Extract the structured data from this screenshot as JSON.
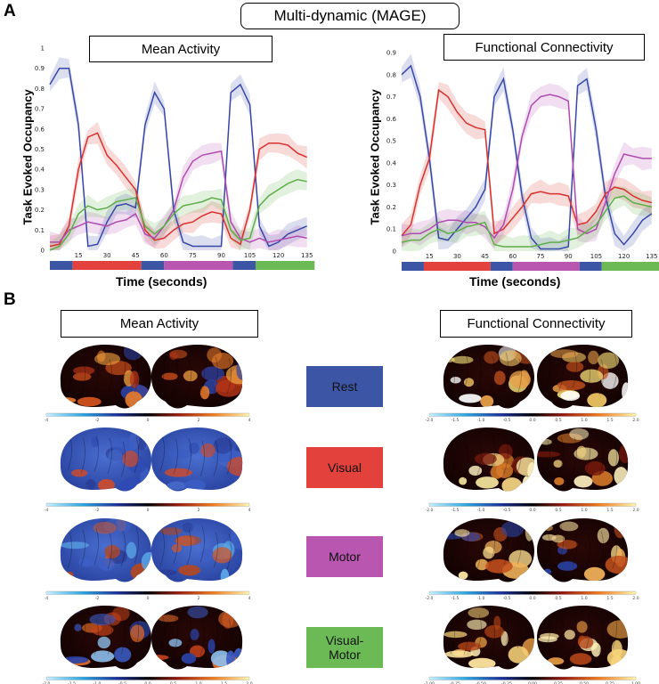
{
  "title": "Multi-dynamic (MAGE)",
  "panel_a": "A",
  "panel_b": "B",
  "mean_label": "Mean Activity",
  "fc_label": "Functional Connectivity",
  "states": [
    {
      "label": "Rest",
      "color": "#3d55a5"
    },
    {
      "label": "Visual",
      "color": "#e2413c"
    },
    {
      "label": "Motor",
      "color": "#b957b0"
    },
    {
      "label": "Visual-\nMotor",
      "color": "#6cba55"
    }
  ],
  "colorbar_ticks": {
    "mean_rows_1_3": [
      "-4",
      "-2",
      "0",
      "2",
      "4"
    ],
    "mean_row_4": [
      "-2.0",
      "-1.5",
      "-1.0",
      "-0.5",
      "0.0",
      "0.5",
      "1.0",
      "1.5",
      "2.0"
    ],
    "fc_rows_1_3": [
      "-2.0",
      "-1.5",
      "-1.0",
      "-0.5",
      "0.0",
      "0.5",
      "1.0",
      "1.5",
      "2.0"
    ],
    "fc_row_4": [
      "-1.00",
      "-0.75",
      "-0.50",
      "-0.25",
      "0.00",
      "0.25",
      "0.50",
      "0.75",
      "1.00"
    ]
  },
  "chart_data": [
    {
      "type": "line",
      "title": "Mean Activity",
      "xlabel": "Time (seconds)",
      "ylabel": "Task Evoked Occupancy",
      "xlim": [
        0,
        137
      ],
      "ylim": [
        0,
        1
      ],
      "xticks": [
        15,
        30,
        45,
        60,
        75,
        90,
        105,
        120,
        135
      ],
      "yticks": [
        0,
        0.1,
        0.2,
        0.3,
        0.4,
        0.5,
        0.6,
        0.7,
        0.8,
        0.9,
        1
      ],
      "ytick_labels": [
        "0",
        "0.1",
        "0.2",
        "0.3",
        "0.4",
        "0.5",
        "0.6",
        "0.7",
        "0.8",
        "0.9",
        "1"
      ],
      "x": [
        0,
        5,
        10,
        15,
        20,
        25,
        30,
        35,
        40,
        45,
        50,
        55,
        60,
        65,
        70,
        75,
        80,
        85,
        90,
        95,
        100,
        105,
        110,
        115,
        120,
        125,
        130,
        135
      ],
      "series": [
        {
          "name": "Rest",
          "color": "#3848a8",
          "values": [
            0.82,
            0.9,
            0.9,
            0.62,
            0.02,
            0.03,
            0.14,
            0.22,
            0.23,
            0.21,
            0.62,
            0.78,
            0.7,
            0.2,
            0.04,
            0.02,
            0.02,
            0.02,
            0.02,
            0.78,
            0.82,
            0.72,
            0.12,
            0.02,
            0.04,
            0.08,
            0.1,
            0.12
          ]
        },
        {
          "name": "Visual",
          "color": "#d9312d",
          "values": [
            0.02,
            0.03,
            0.12,
            0.4,
            0.56,
            0.58,
            0.47,
            0.42,
            0.36,
            0.3,
            0.1,
            0.05,
            0.06,
            0.1,
            0.13,
            0.14,
            0.17,
            0.19,
            0.18,
            0.06,
            0.03,
            0.2,
            0.5,
            0.53,
            0.53,
            0.52,
            0.48,
            0.46
          ]
        },
        {
          "name": "Motor",
          "color": "#b04bb0",
          "values": [
            0.04,
            0.04,
            0.1,
            0.12,
            0.14,
            0.13,
            0.12,
            0.14,
            0.15,
            0.18,
            0.08,
            0.06,
            0.12,
            0.2,
            0.36,
            0.44,
            0.47,
            0.48,
            0.49,
            0.14,
            0.06,
            0.04,
            0.06,
            0.04,
            0.05,
            0.06,
            0.07,
            0.06
          ]
        },
        {
          "name": "Visual-Motor",
          "color": "#5fae4a",
          "values": [
            0.0,
            0.02,
            0.08,
            0.18,
            0.22,
            0.2,
            0.21,
            0.24,
            0.25,
            0.26,
            0.12,
            0.08,
            0.12,
            0.18,
            0.22,
            0.23,
            0.24,
            0.26,
            0.25,
            0.1,
            0.05,
            0.06,
            0.22,
            0.27,
            0.3,
            0.33,
            0.35,
            0.34
          ]
        }
      ]
    },
    {
      "type": "line",
      "title": "Functional Connectivity",
      "xlabel": "Time (seconds)",
      "ylabel": "Task Evoked Occupancy",
      "xlim": [
        0,
        137
      ],
      "ylim": [
        0,
        0.9
      ],
      "xticks": [
        15,
        30,
        45,
        60,
        75,
        90,
        105,
        120,
        135
      ],
      "yticks": [
        0,
        0.1,
        0.2,
        0.3,
        0.4,
        0.5,
        0.6,
        0.7,
        0.8,
        0.9
      ],
      "ytick_labels": [
        "0",
        "0.1",
        "0.2",
        "0.3",
        "0.4",
        "0.5",
        "0.6",
        "0.7",
        "0.8",
        "0.9"
      ],
      "x": [
        0,
        5,
        10,
        15,
        20,
        25,
        30,
        35,
        40,
        45,
        50,
        55,
        60,
        65,
        70,
        75,
        80,
        85,
        90,
        95,
        100,
        105,
        110,
        115,
        120,
        125,
        130,
        135
      ],
      "series": [
        {
          "name": "Rest",
          "color": "#3848a8",
          "values": [
            0.8,
            0.84,
            0.7,
            0.42,
            0.06,
            0.05,
            0.1,
            0.15,
            0.2,
            0.28,
            0.7,
            0.78,
            0.55,
            0.25,
            0.06,
            0.01,
            0.01,
            0.01,
            0.02,
            0.75,
            0.78,
            0.55,
            0.25,
            0.08,
            0.03,
            0.08,
            0.14,
            0.17
          ]
        },
        {
          "name": "Visual",
          "color": "#d9312d",
          "values": [
            0.07,
            0.12,
            0.3,
            0.42,
            0.73,
            0.7,
            0.63,
            0.58,
            0.56,
            0.55,
            0.08,
            0.1,
            0.15,
            0.2,
            0.26,
            0.27,
            0.26,
            0.26,
            0.25,
            0.12,
            0.13,
            0.18,
            0.26,
            0.29,
            0.28,
            0.25,
            0.23,
            0.22
          ]
        },
        {
          "name": "Motor",
          "color": "#b04bb0",
          "values": [
            0.07,
            0.08,
            0.08,
            0.1,
            0.13,
            0.14,
            0.14,
            0.13,
            0.13,
            0.11,
            0.06,
            0.12,
            0.28,
            0.52,
            0.66,
            0.7,
            0.71,
            0.7,
            0.68,
            0.1,
            0.08,
            0.1,
            0.22,
            0.35,
            0.44,
            0.43,
            0.42,
            0.42
          ]
        },
        {
          "name": "Visual-Motor",
          "color": "#5fae4a",
          "values": [
            0.04,
            0.05,
            0.05,
            0.08,
            0.1,
            0.08,
            0.09,
            0.11,
            0.12,
            0.13,
            0.03,
            0.02,
            0.02,
            0.02,
            0.02,
            0.03,
            0.04,
            0.04,
            0.05,
            0.06,
            0.09,
            0.12,
            0.18,
            0.24,
            0.25,
            0.22,
            0.21,
            0.2
          ]
        }
      ],
      "task_blocks": [
        {
          "state": "Rest",
          "start": 0,
          "end": 12
        },
        {
          "state": "Visual",
          "start": 12,
          "end": 48
        },
        {
          "state": "Rest",
          "start": 48,
          "end": 60
        },
        {
          "state": "Motor",
          "start": 60,
          "end": 96
        },
        {
          "state": "Rest",
          "start": 96,
          "end": 108
        },
        {
          "state": "Visual-Motor",
          "start": 108,
          "end": 144
        }
      ]
    }
  ]
}
